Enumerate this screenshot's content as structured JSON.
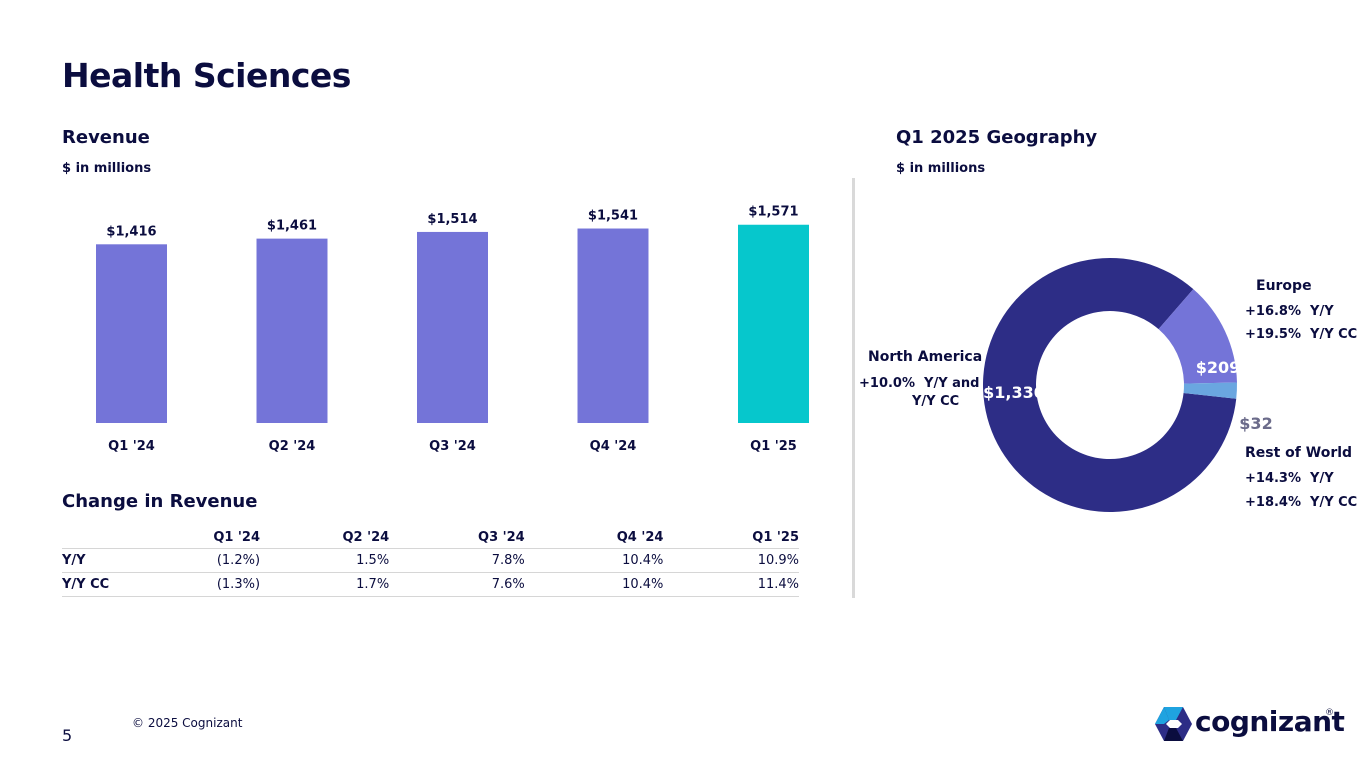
{
  "page": {
    "title": "Health Sciences",
    "page_number": "5",
    "copyright": "© 2025 Cognizant",
    "logo_text": "cognizant",
    "logo_mark": "®"
  },
  "revenue": {
    "title": "Revenue",
    "units": "$ in millions"
  },
  "change": {
    "title": "Change in Revenue",
    "columns": [
      "Q1 '24",
      "Q2 '24",
      "Q3 '24",
      "Q4 '24",
      "Q1 '25"
    ],
    "rows": [
      {
        "label": "Y/Y",
        "values": [
          "(1.2%)",
          "1.5%",
          "7.8%",
          "10.4%",
          "10.9%"
        ]
      },
      {
        "label": "Y/Y CC",
        "values": [
          "(1.3%)",
          "1.7%",
          "7.6%",
          "10.4%",
          "11.4%"
        ]
      }
    ]
  },
  "geography": {
    "title": "Q1 2025 Geography",
    "units": "$ in millions",
    "north_america": {
      "name": "North America",
      "stat_1": "+10.0%  Y/Y and",
      "stat_2": "Y/Y CC"
    },
    "europe": {
      "name": "Europe",
      "stat_1": "+16.8%  Y/Y",
      "stat_2": "+19.5%  Y/Y CC"
    },
    "rest_of_world": {
      "name": "Rest of World",
      "stat_1": "+14.3%  Y/Y",
      "stat_2": "+18.4%  Y/Y CC"
    }
  },
  "colors": {
    "bar": "#7474d8",
    "bar_highlight": "#06c7cc",
    "north_america": "#2d2d86",
    "europe": "#7474d8",
    "rest_of_world": "#6aa6e0",
    "navy": "#0b0d3f"
  },
  "chart_data": [
    {
      "type": "bar",
      "categories": [
        "Q1 '24",
        "Q2 '24",
        "Q3 '24",
        "Q4 '24",
        "Q1 '25"
      ],
      "values": [
        1416,
        1461,
        1514,
        1541,
        1571
      ],
      "value_labels": [
        "$1,416",
        "$1,461",
        "$1,514",
        "$1,541",
        "$1,571"
      ],
      "title": "Revenue",
      "subtitle": "$ in millions",
      "highlight_index": 4,
      "grid": false
    },
    {
      "type": "pie",
      "style": "donut",
      "title": "Q1 2025 Geography",
      "subtitle": "$ in millions",
      "categories": [
        "North America",
        "Europe",
        "Rest of World"
      ],
      "values": [
        1330,
        209,
        32
      ],
      "value_labels": [
        "$1,330",
        "$209",
        "$32"
      ]
    }
  ]
}
